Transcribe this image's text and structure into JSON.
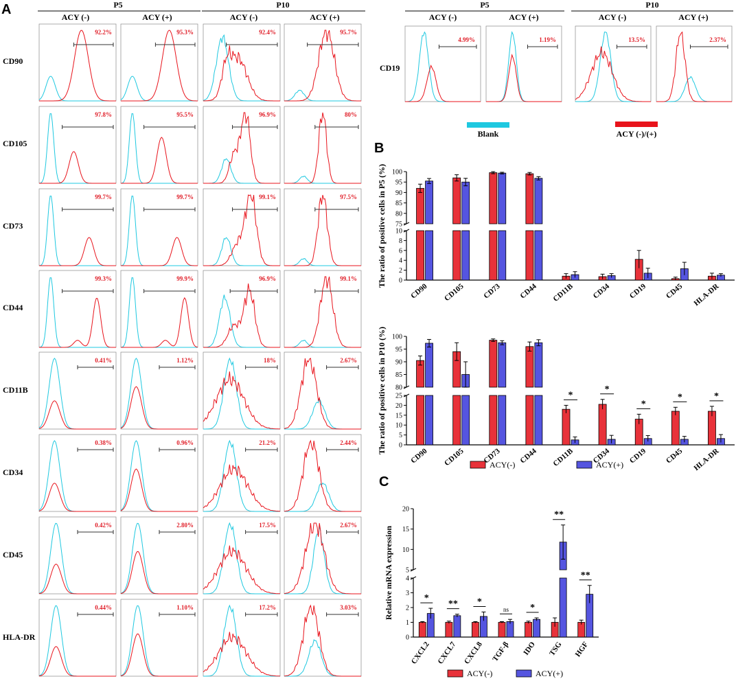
{
  "panels": {
    "a": "A",
    "b": "B",
    "c": "C"
  },
  "panel_a": {
    "groups": [
      "P5",
      "P10"
    ],
    "conditions": [
      "ACY (-)",
      "ACY (+)"
    ],
    "markers": [
      "CD90",
      "CD105",
      "CD73",
      "CD44",
      "CD11B",
      "CD34",
      "CD45",
      "HLA-DR"
    ],
    "percentages": [
      [
        "92.2%",
        "95.3%",
        "92.4%",
        "95.7%"
      ],
      [
        "97.8%",
        "95.5%",
        "96.9%",
        "80%"
      ],
      [
        "99.7%",
        "99.7%",
        "99.1%",
        "97.5%"
      ],
      [
        "99.3%",
        "99.9%",
        "96.9%",
        "99.1%"
      ],
      [
        "0.41%",
        "1.12%",
        "18%",
        "2.67%"
      ],
      [
        "0.38%",
        "0.96%",
        "21.2%",
        "2.44%"
      ],
      [
        "0.42%",
        "2.80%",
        "17.5%",
        "2.67%"
      ],
      [
        "0.44%",
        "1.10%",
        "17.2%",
        "3.03%"
      ]
    ]
  },
  "panel_a_cd19": {
    "marker": "CD19",
    "percentages": [
      "4.99%",
      "1.19%",
      "13.5%",
      "2.37%"
    ],
    "legend": {
      "blank": "Blank",
      "acy": "ACY (-)/(+)"
    }
  },
  "colors": {
    "red": "#e8131b",
    "cyan": "#1ec8e0",
    "bar_red": "#e8323a",
    "bar_blue": "#5555e0"
  },
  "chart_data": [
    {
      "type": "bar",
      "title": "",
      "ylabel": "The ratio of positive cells in P5 (%)",
      "categories": [
        "CD90",
        "CD105",
        "CD73",
        "CD44",
        "CD11B",
        "CD34",
        "CD19",
        "CD45",
        "HLA-DR"
      ],
      "series": [
        {
          "name": "ACY(-)",
          "values": [
            92,
            97,
            99.5,
            99,
            0.8,
            0.7,
            4.2,
            0.3,
            0.8
          ],
          "errors": [
            2,
            1.5,
            0.5,
            0.6,
            0.5,
            0.5,
            1.8,
            0.3,
            0.6
          ]
        },
        {
          "name": "ACY(+)",
          "values": [
            95.5,
            95,
            99.3,
            96.8,
            1.1,
            0.9,
            1.4,
            2.3,
            1.0
          ],
          "errors": [
            1.2,
            1.8,
            0.4,
            0.8,
            0.6,
            0.4,
            1.0,
            1.3,
            0.3
          ]
        }
      ],
      "y_lower_ticks": [
        0,
        2,
        4,
        6,
        8,
        10
      ],
      "y_upper_ticks": [
        75,
        80,
        85,
        90,
        95,
        100
      ],
      "ylim_lower": [
        0,
        10
      ],
      "ylim_upper": [
        75,
        100
      ]
    },
    {
      "type": "bar",
      "title": "",
      "ylabel": "The ratio of positive cells in P10 (%)",
      "categories": [
        "CD90",
        "CD105",
        "CD73",
        "CD44",
        "CD11B",
        "CD34",
        "CD19",
        "CD45",
        "HLA-DR"
      ],
      "series": [
        {
          "name": "ACY(-)",
          "values": [
            90.5,
            94,
            98.5,
            96,
            18,
            20.5,
            13,
            17,
            17
          ],
          "errors": [
            1.8,
            3.5,
            0.5,
            1.8,
            2,
            2.5,
            2.5,
            2,
            2.5
          ]
        },
        {
          "name": "ACY(+)",
          "values": [
            97.3,
            85,
            97.5,
            97.5,
            2.5,
            2.8,
            3.2,
            2.8,
            3.2
          ],
          "errors": [
            1.5,
            5,
            0.8,
            1.2,
            1.5,
            2,
            1.5,
            1.5,
            2
          ]
        }
      ],
      "significance": [
        "",
        "",
        "",
        "",
        "*",
        "*",
        "*",
        "*",
        "*"
      ],
      "y_lower_ticks": [
        0,
        5,
        10,
        15,
        20,
        25
      ],
      "y_upper_ticks": [
        80,
        85,
        90,
        95,
        100
      ],
      "ylim_lower": [
        0,
        25
      ],
      "ylim_upper": [
        80,
        100
      ]
    },
    {
      "type": "bar",
      "title": "",
      "ylabel": "Relative mRNA expression",
      "categories": [
        "CXCL2",
        "CXCL7",
        "CXCL8",
        "TGF-β",
        "IDO",
        "TSG",
        "HGF"
      ],
      "series": [
        {
          "name": "ACY(-)",
          "values": [
            1,
            1,
            1,
            1,
            1,
            1,
            1
          ],
          "errors": [
            0.05,
            0.08,
            0.05,
            0.05,
            0.08,
            0.3,
            0.15
          ]
        },
        {
          "name": "ACY(+)",
          "values": [
            1.6,
            1.45,
            1.4,
            1.05,
            1.2,
            11.8,
            2.9
          ],
          "errors": [
            0.35,
            0.1,
            0.3,
            0.15,
            0.1,
            4.2,
            0.6
          ]
        }
      ],
      "significance": [
        "*",
        "**",
        "*",
        "ns",
        "*",
        "**",
        "**"
      ],
      "y_lower_ticks": [
        0,
        1,
        2,
        3,
        4
      ],
      "y_upper_ticks": [
        5,
        10,
        15,
        20
      ],
      "ylim_lower": [
        0,
        4
      ],
      "ylim_upper": [
        5,
        20
      ]
    }
  ],
  "legend_b": {
    "neg": "ACY(-)",
    "pos": "ACY(+)"
  },
  "legend_c": {
    "neg": "ACY(-)",
    "pos": "ACY(+)"
  }
}
